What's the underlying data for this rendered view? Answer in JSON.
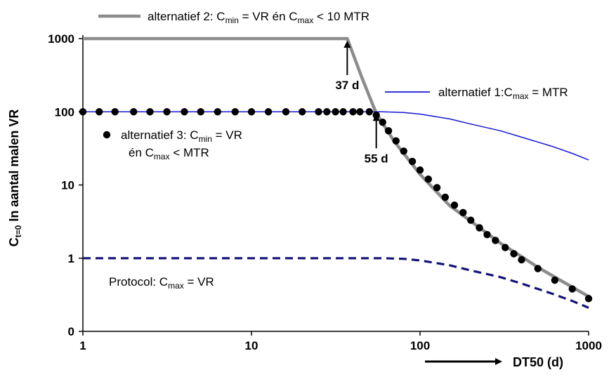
{
  "chart_data": {
    "type": "line",
    "x_scale": "log",
    "y_scale": "log",
    "xlim": [
      1,
      1000
    ],
    "ylim": [
      0.1,
      1000
    ],
    "x_ticks": [
      1,
      10,
      100,
      1000
    ],
    "x_tick_labels": [
      "1",
      "10",
      "100",
      "1000"
    ],
    "y_ticks": [
      0.1,
      1,
      10,
      100,
      1000
    ],
    "y_tick_labels": [
      "0",
      "1",
      "10",
      "100",
      "1000"
    ],
    "xlabel": "DT50 (d)",
    "ylabel": {
      "main": "C",
      "sub": "t=0",
      "rest": " In aantal malen VR"
    },
    "grid": false,
    "series": [
      {
        "name": "alternatief 2",
        "style": "thick-gray-solid",
        "color": "#8c8c8c",
        "x": [
          1,
          37,
          45,
          55,
          70,
          100,
          150,
          200,
          300,
          400,
          500,
          700,
          1000
        ],
        "y": [
          1000,
          1000,
          300,
          95,
          40,
          14,
          5.2,
          3.2,
          1.6,
          1.05,
          0.75,
          0.48,
          0.3
        ]
      },
      {
        "name": "alternatief 1",
        "style": "thin-blue-solid",
        "color": "#1515d8",
        "x": [
          1,
          60,
          80,
          100,
          150,
          200,
          300,
          400,
          600,
          800,
          1000
        ],
        "y": [
          100,
          100,
          98,
          93,
          80,
          68,
          55,
          45,
          34,
          27,
          22
        ]
      },
      {
        "name": "alternatief 3",
        "style": "black-dots",
        "color": "#000000",
        "x": [
          1,
          1.25,
          1.55,
          2,
          2.5,
          3.15,
          4,
          5,
          6.3,
          8,
          10,
          12.6,
          16,
          20,
          25,
          28,
          31.5,
          35,
          40,
          44,
          50,
          55,
          60,
          65,
          72,
          80,
          90,
          100,
          112,
          126,
          141,
          160,
          180,
          200,
          225,
          250,
          280,
          320,
          360,
          400,
          500,
          630,
          800,
          1000
        ],
        "y": [
          100,
          100,
          100,
          100,
          100,
          100,
          100,
          100,
          100,
          100,
          100,
          100,
          100,
          100,
          100,
          100,
          100,
          100,
          100,
          100,
          100,
          90,
          72,
          55,
          40,
          29,
          21,
          16,
          12,
          9.2,
          6.8,
          5.3,
          4.2,
          3.3,
          2.6,
          2.1,
          1.75,
          1.4,
          1.15,
          0.95,
          0.72,
          0.5,
          0.38,
          0.28
        ]
      },
      {
        "name": "Protocol",
        "style": "navy-dashed",
        "color": "#13137a",
        "x": [
          1,
          60,
          80,
          100,
          150,
          200,
          300,
          400,
          600,
          800,
          1000
        ],
        "y": [
          1,
          1,
          0.98,
          0.93,
          0.8,
          0.68,
          0.55,
          0.45,
          0.33,
          0.26,
          0.21
        ]
      }
    ],
    "annotations": [
      {
        "text": "37 d",
        "x": 37,
        "y": 1000
      },
      {
        "text": "55 d",
        "x": 55,
        "y": 100
      }
    ],
    "legend": [
      {
        "series": "alternatief 2",
        "text_a": "alternatief 2: C",
        "sub_a": "min",
        "text_b": " = VR én C",
        "sub_b": "max",
        "text_c": " < 10 MTR"
      },
      {
        "series": "alternatief 1",
        "text_a": "alternatief 1:C",
        "sub_a": "max",
        "text_b": " = MTR"
      },
      {
        "series": "alternatief 3",
        "line1_a": "alternatief 3: C",
        "line1_sub": "min",
        "line1_b": " = VR",
        "line2_a": "én C",
        "line2_sub": "max",
        "line2_b": " < MTR"
      },
      {
        "series": "Protocol",
        "text_a": "Protocol: C",
        "sub_a": "max",
        "text_b": " = VR"
      }
    ]
  }
}
